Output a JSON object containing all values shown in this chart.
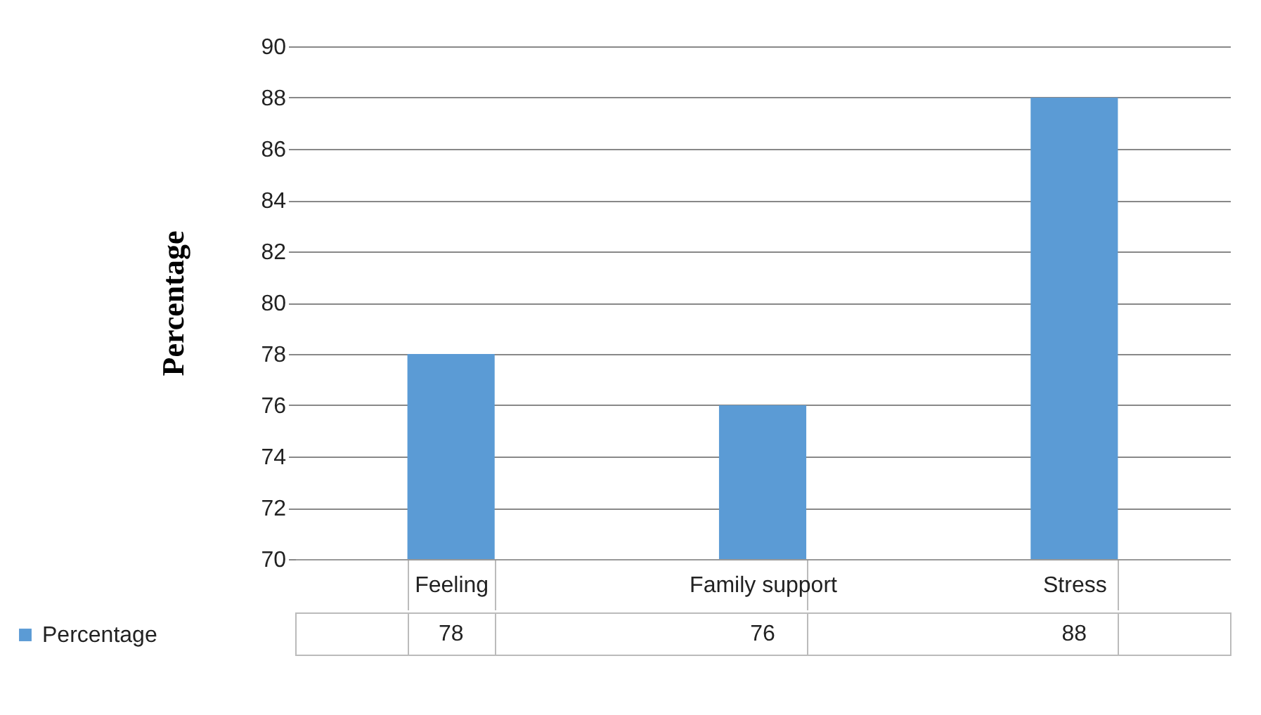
{
  "chart_data": {
    "type": "bar",
    "ylabel": "Percentage",
    "categories": [
      "Feeling",
      "Family support",
      "Stress"
    ],
    "series": [
      {
        "name": "Percentage",
        "color": "#5b9bd5",
        "values": [
          78,
          76,
          88
        ]
      }
    ],
    "ylim": [
      70,
      90
    ],
    "yticks": [
      70,
      72,
      74,
      76,
      78,
      80,
      82,
      84,
      86,
      88,
      90
    ],
    "grid": "y",
    "legend": "bottom left",
    "data_labels": true
  }
}
